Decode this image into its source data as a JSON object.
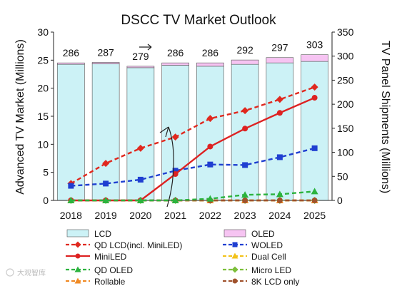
{
  "chart_data": {
    "type": "bar",
    "title": "DSCC TV Market Outlook",
    "categories": [
      "2018",
      "2019",
      "2020",
      "2021",
      "2022",
      "2023",
      "2024",
      "2025"
    ],
    "y_left": {
      "label": "Advanced TV Market (Millions)",
      "range": [
        0,
        30
      ],
      "ticks": [
        "0",
        "5",
        "10",
        "15",
        "20",
        "25",
        "30"
      ]
    },
    "y_right": {
      "label": "TV Panel Shipments (Millions)",
      "range": [
        0,
        350
      ],
      "ticks": [
        "0",
        "50",
        "100",
        "150",
        "200",
        "250",
        "300",
        "350"
      ]
    },
    "bars": [
      {
        "name": "LCD",
        "axis": "right",
        "color": "#ccf2f6",
        "values": [
          283,
          284,
          276,
          281,
          279,
          283,
          286,
          289
        ]
      },
      {
        "name": "OLED",
        "axis": "right",
        "color": "#f6c4f2",
        "values": [
          3,
          3,
          3,
          5,
          7,
          9,
          11,
          14
        ]
      }
    ],
    "bar_totals": [
      "286",
      "287",
      "279",
      "286",
      "286",
      "292",
      "297",
      "303"
    ],
    "series": [
      {
        "name": "QD LCD(incl. MiniLED)",
        "axis": "left",
        "color": "#e0281e",
        "dash": true,
        "marker": "diamond",
        "values": [
          3.0,
          6.6,
          9.3,
          11.3,
          14.6,
          16.0,
          18.0,
          20.2
        ]
      },
      {
        "name": "WOLED",
        "axis": "left",
        "color": "#1f3fd1",
        "dash": true,
        "marker": "square",
        "values": [
          2.6,
          3.0,
          3.7,
          5.3,
          6.4,
          6.3,
          7.7,
          9.3
        ]
      },
      {
        "name": "MiniLED",
        "axis": "left",
        "color": "#dd2222",
        "dash": false,
        "marker": "circle",
        "values": [
          0.0,
          0.0,
          0.0,
          4.7,
          9.6,
          12.8,
          15.6,
          18.3
        ]
      },
      {
        "name": "Dual Cell",
        "axis": "left",
        "color": "#f2c21b",
        "dash": true,
        "marker": "triangle",
        "values": [
          0,
          0,
          0,
          0,
          0,
          0,
          0,
          0
        ]
      },
      {
        "name": "QD OLED",
        "axis": "left",
        "color": "#2bb33e",
        "dash": true,
        "marker": "triangle",
        "values": [
          0,
          0,
          0,
          0,
          0.3,
          1.0,
          1.1,
          1.6
        ]
      },
      {
        "name": "Micro LED",
        "axis": "left",
        "color": "#7cbf3a",
        "dash": true,
        "marker": "diamond",
        "values": [
          0,
          0,
          0,
          0,
          0,
          0,
          0,
          0
        ]
      },
      {
        "name": "Rollable",
        "axis": "left",
        "color": "#f08a24",
        "dash": true,
        "marker": "triangle",
        "values": [
          0,
          0,
          0,
          0,
          0,
          0,
          0,
          0
        ]
      },
      {
        "name": "8K LCD only",
        "axis": "left",
        "color": "#a0522d",
        "dash": true,
        "marker": "circle",
        "values": [
          0,
          0,
          0,
          0,
          0,
          0,
          0,
          0
        ]
      }
    ],
    "legend": {
      "placement": "bottom",
      "items": [
        "LCD",
        "OLED",
        "QD LCD(incl. MiniLED)",
        "WOLED",
        "MiniLED",
        "Dual Cell",
        "QD OLED",
        "Micro LED",
        "Rollable",
        "8K LCD only"
      ]
    }
  },
  "watermark": "大观智库"
}
